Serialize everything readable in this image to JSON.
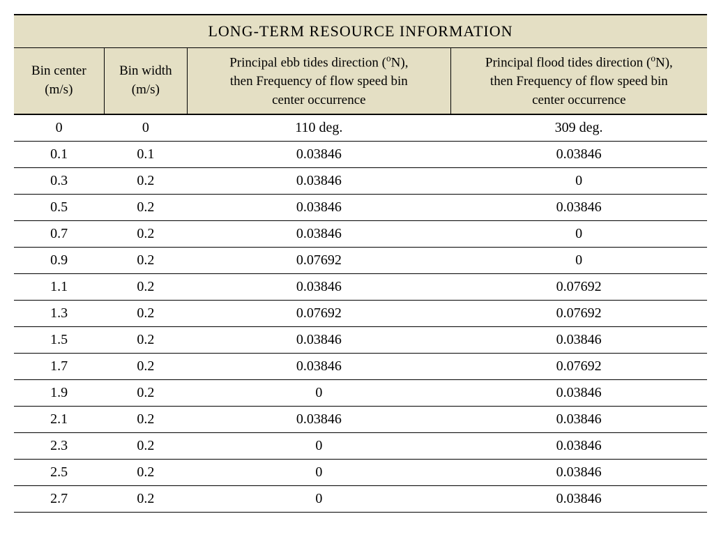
{
  "table": {
    "title": "LONG-TERM RESOURCE INFORMATION",
    "title_background": "#e4dfc4",
    "title_fontsize": 22,
    "header_background": "#e4dfc4",
    "header_fontsize": 19,
    "cell_fontsize": 20,
    "border_color": "#000000",
    "background_color": "#ffffff",
    "text_color": "#000000",
    "column_widths_pct": [
      13,
      12,
      38,
      37
    ],
    "columns": [
      {
        "line1": "Bin center",
        "line2": "(m/s)"
      },
      {
        "line1": "Bin width",
        "line2": "(m/s)"
      },
      {
        "line1_pre": "Principal ebb tides direction (",
        "line1_sup": "o",
        "line1_post": "N),",
        "line2": "then Frequency of flow speed bin",
        "line3": "center occurrence"
      },
      {
        "line1_pre": "Principal flood tides direction (",
        "line1_sup": "o",
        "line1_post": "N),",
        "line2": "then Frequency of flow speed bin",
        "line3": "center occurrence"
      }
    ],
    "rows": [
      [
        "0",
        "0",
        "110 deg.",
        "309 deg."
      ],
      [
        "0.1",
        "0.1",
        "0.03846",
        "0.03846"
      ],
      [
        "0.3",
        "0.2",
        "0.03846",
        "0"
      ],
      [
        "0.5",
        "0.2",
        "0.03846",
        "0.03846"
      ],
      [
        "0.7",
        "0.2",
        "0.03846",
        "0"
      ],
      [
        "0.9",
        "0.2",
        "0.07692",
        "0"
      ],
      [
        "1.1",
        "0.2",
        "0.03846",
        "0.07692"
      ],
      [
        "1.3",
        "0.2",
        "0.07692",
        "0.07692"
      ],
      [
        "1.5",
        "0.2",
        "0.03846",
        "0.03846"
      ],
      [
        "1.7",
        "0.2",
        "0.03846",
        "0.07692"
      ],
      [
        "1.9",
        "0.2",
        "0",
        "0.03846"
      ],
      [
        "2.1",
        "0.2",
        "0.03846",
        "0.03846"
      ],
      [
        "2.3",
        "0.2",
        "0",
        "0.03846"
      ],
      [
        "2.5",
        "0.2",
        "0",
        "0.03846"
      ],
      [
        "2.7",
        "0.2",
        "0",
        "0.03846"
      ]
    ]
  }
}
